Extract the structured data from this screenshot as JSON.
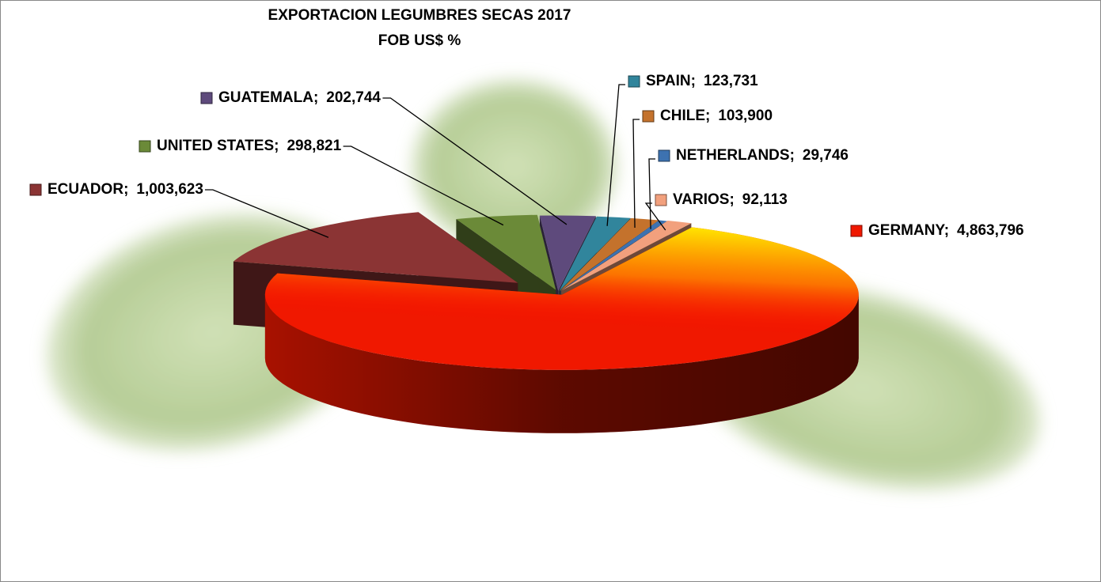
{
  "chart_data": {
    "type": "pie3d",
    "title": "EXPORTACION  LEGUMBRES SECAS 2017",
    "subtitle": "FOB  US$ %",
    "label_separator": ";",
    "categories": [
      "GERMANY",
      "ECUADOR",
      "UNITED STATES",
      "GUATEMALA",
      "SPAIN",
      "CHILE",
      "NETHERLANDS",
      "VARIOS"
    ],
    "values": [
      4863796,
      1003623,
      298821,
      202744,
      123731,
      103900,
      29746,
      92113
    ],
    "value_labels": [
      "4,863,796",
      "1,003,623",
      "298,821",
      "202,744",
      "123,731",
      "103,900",
      "29,746",
      "92,113"
    ],
    "colors": [
      "#f01800",
      "#8b3434",
      "#6b8a38",
      "#5e4a7c",
      "#31859c",
      "#c4722c",
      "#3d72b0",
      "#f2a07d"
    ]
  }
}
